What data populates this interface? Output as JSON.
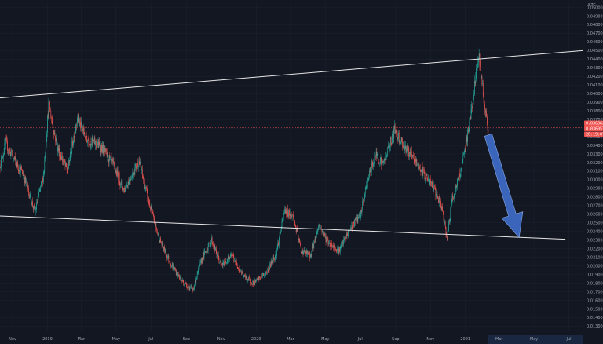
{
  "chart_data": {
    "type": "candlestick",
    "quote_unit": "BTC",
    "colors": {
      "background": "#131722",
      "up": "#26a69a",
      "down": "#ef5350",
      "grid": "#1e2230",
      "trendline": "#e6e6e6",
      "arrow": "#3d6ac4",
      "price_tag": "#ef5350",
      "axis_text": "#a3a6af"
    },
    "y_axis": {
      "ylim": [
        0.0124,
        0.0505
      ],
      "ticks": [
        "0.050000",
        "0.049000",
        "0.048000",
        "0.047000",
        "0.046000",
        "0.045000",
        "0.044000",
        "0.043000",
        "0.042000",
        "0.041000",
        "0.040000",
        "0.039000",
        "0.038000",
        "0.037000",
        "0.036000",
        "0.035000",
        "0.034000",
        "0.033000",
        "0.032000",
        "0.031000",
        "0.030000",
        "0.029000",
        "0.028000",
        "0.027000",
        "0.026000",
        "0.025000",
        "0.024000",
        "0.023000",
        "0.022000",
        "0.021000",
        "0.020000",
        "0.019000",
        "0.018000",
        "0.017000",
        "0.016000",
        "0.015000",
        "0.014000",
        "0.013000"
      ]
    },
    "x_axis": {
      "xlim": [
        "2018-10-10",
        "2021-07-25"
      ],
      "ticks": [
        {
          "label": "Nov",
          "date": "2018-11-01"
        },
        {
          "label": "2019",
          "date": "2019-01-01"
        },
        {
          "label": "Mar",
          "date": "2019-03-01"
        },
        {
          "label": "May",
          "date": "2019-05-01"
        },
        {
          "label": "Jul",
          "date": "2019-07-01"
        },
        {
          "label": "Sep",
          "date": "2019-09-01"
        },
        {
          "label": "Nov",
          "date": "2019-11-01"
        },
        {
          "label": "2020",
          "date": "2020-01-01"
        },
        {
          "label": "Mar",
          "date": "2020-03-01"
        },
        {
          "label": "May",
          "date": "2020-05-01"
        },
        {
          "label": "Jul",
          "date": "2020-07-01"
        },
        {
          "label": "Sep",
          "date": "2020-09-01"
        },
        {
          "label": "Nov",
          "date": "2020-11-01"
        },
        {
          "label": "2021",
          "date": "2021-01-01"
        },
        {
          "label": "Mar",
          "date": "2021-03-01"
        },
        {
          "label": "May",
          "date": "2021-05-01"
        },
        {
          "label": "Jul",
          "date": "2021-07-01"
        }
      ],
      "future_range": [
        "2021-02-10",
        "2021-07-25"
      ]
    },
    "price_path": [
      [
        "2018-10-10",
        0.0318
      ],
      [
        "2018-10-20",
        0.0342
      ],
      [
        "2018-11-05",
        0.0322
      ],
      [
        "2018-11-20",
        0.0306
      ],
      [
        "2018-12-10",
        0.0262
      ],
      [
        "2018-12-25",
        0.0305
      ],
      [
        "2019-01-03",
        0.0388
      ],
      [
        "2019-01-18",
        0.0338
      ],
      [
        "2019-02-05",
        0.031
      ],
      [
        "2019-02-22",
        0.0372
      ],
      [
        "2019-03-10",
        0.0348
      ],
      [
        "2019-04-05",
        0.0338
      ],
      [
        "2019-04-25",
        0.0318
      ],
      [
        "2019-05-15",
        0.0288
      ],
      [
        "2019-06-10",
        0.0322
      ],
      [
        "2019-06-28",
        0.0272
      ],
      [
        "2019-07-15",
        0.0232
      ],
      [
        "2019-08-05",
        0.0202
      ],
      [
        "2019-08-25",
        0.0182
      ],
      [
        "2019-09-12",
        0.0172
      ],
      [
        "2019-09-28",
        0.0208
      ],
      [
        "2019-10-15",
        0.023
      ],
      [
        "2019-11-01",
        0.02
      ],
      [
        "2019-11-20",
        0.0212
      ],
      [
        "2019-12-10",
        0.0188
      ],
      [
        "2019-12-28",
        0.018
      ],
      [
        "2020-01-20",
        0.0193
      ],
      [
        "2020-02-05",
        0.0215
      ],
      [
        "2020-02-20",
        0.0265
      ],
      [
        "2020-03-05",
        0.0258
      ],
      [
        "2020-03-20",
        0.0218
      ],
      [
        "2020-04-05",
        0.0212
      ],
      [
        "2020-04-20",
        0.0248
      ],
      [
        "2020-05-05",
        0.0228
      ],
      [
        "2020-05-25",
        0.0218
      ],
      [
        "2020-06-15",
        0.0245
      ],
      [
        "2020-07-01",
        0.0258
      ],
      [
        "2020-07-15",
        0.0302
      ],
      [
        "2020-07-28",
        0.033
      ],
      [
        "2020-08-10",
        0.0318
      ],
      [
        "2020-08-30",
        0.0358
      ],
      [
        "2020-09-15",
        0.034
      ],
      [
        "2020-10-01",
        0.0325
      ],
      [
        "2020-10-20",
        0.0308
      ],
      [
        "2020-11-08",
        0.0288
      ],
      [
        "2020-11-22",
        0.0265
      ],
      [
        "2020-11-30",
        0.0232
      ],
      [
        "2020-12-08",
        0.0275
      ],
      [
        "2020-12-22",
        0.0305
      ],
      [
        "2021-01-02",
        0.034
      ],
      [
        "2021-01-14",
        0.0392
      ],
      [
        "2021-01-24",
        0.0445
      ],
      [
        "2021-01-31",
        0.0408
      ],
      [
        "2021-02-06",
        0.0375
      ],
      [
        "2021-02-10",
        0.0355
      ]
    ],
    "last_price_tags": [
      "0.036062",
      "0.036057",
      "26:19:07"
    ],
    "last_price_value": 0.036057,
    "annotations": {
      "upper_trendline": [
        [
          "2018-10-10",
          0.0395
        ],
        [
          "2021-07-25",
          0.045
        ]
      ],
      "lower_trendline": [
        [
          "2018-10-10",
          0.0258
        ],
        [
          "2021-06-25",
          0.0231
        ]
      ],
      "arrow": {
        "from": [
          "2021-02-10",
          0.0352
        ],
        "to": [
          "2021-04-05",
          0.0233
        ],
        "direction": "down"
      }
    }
  }
}
